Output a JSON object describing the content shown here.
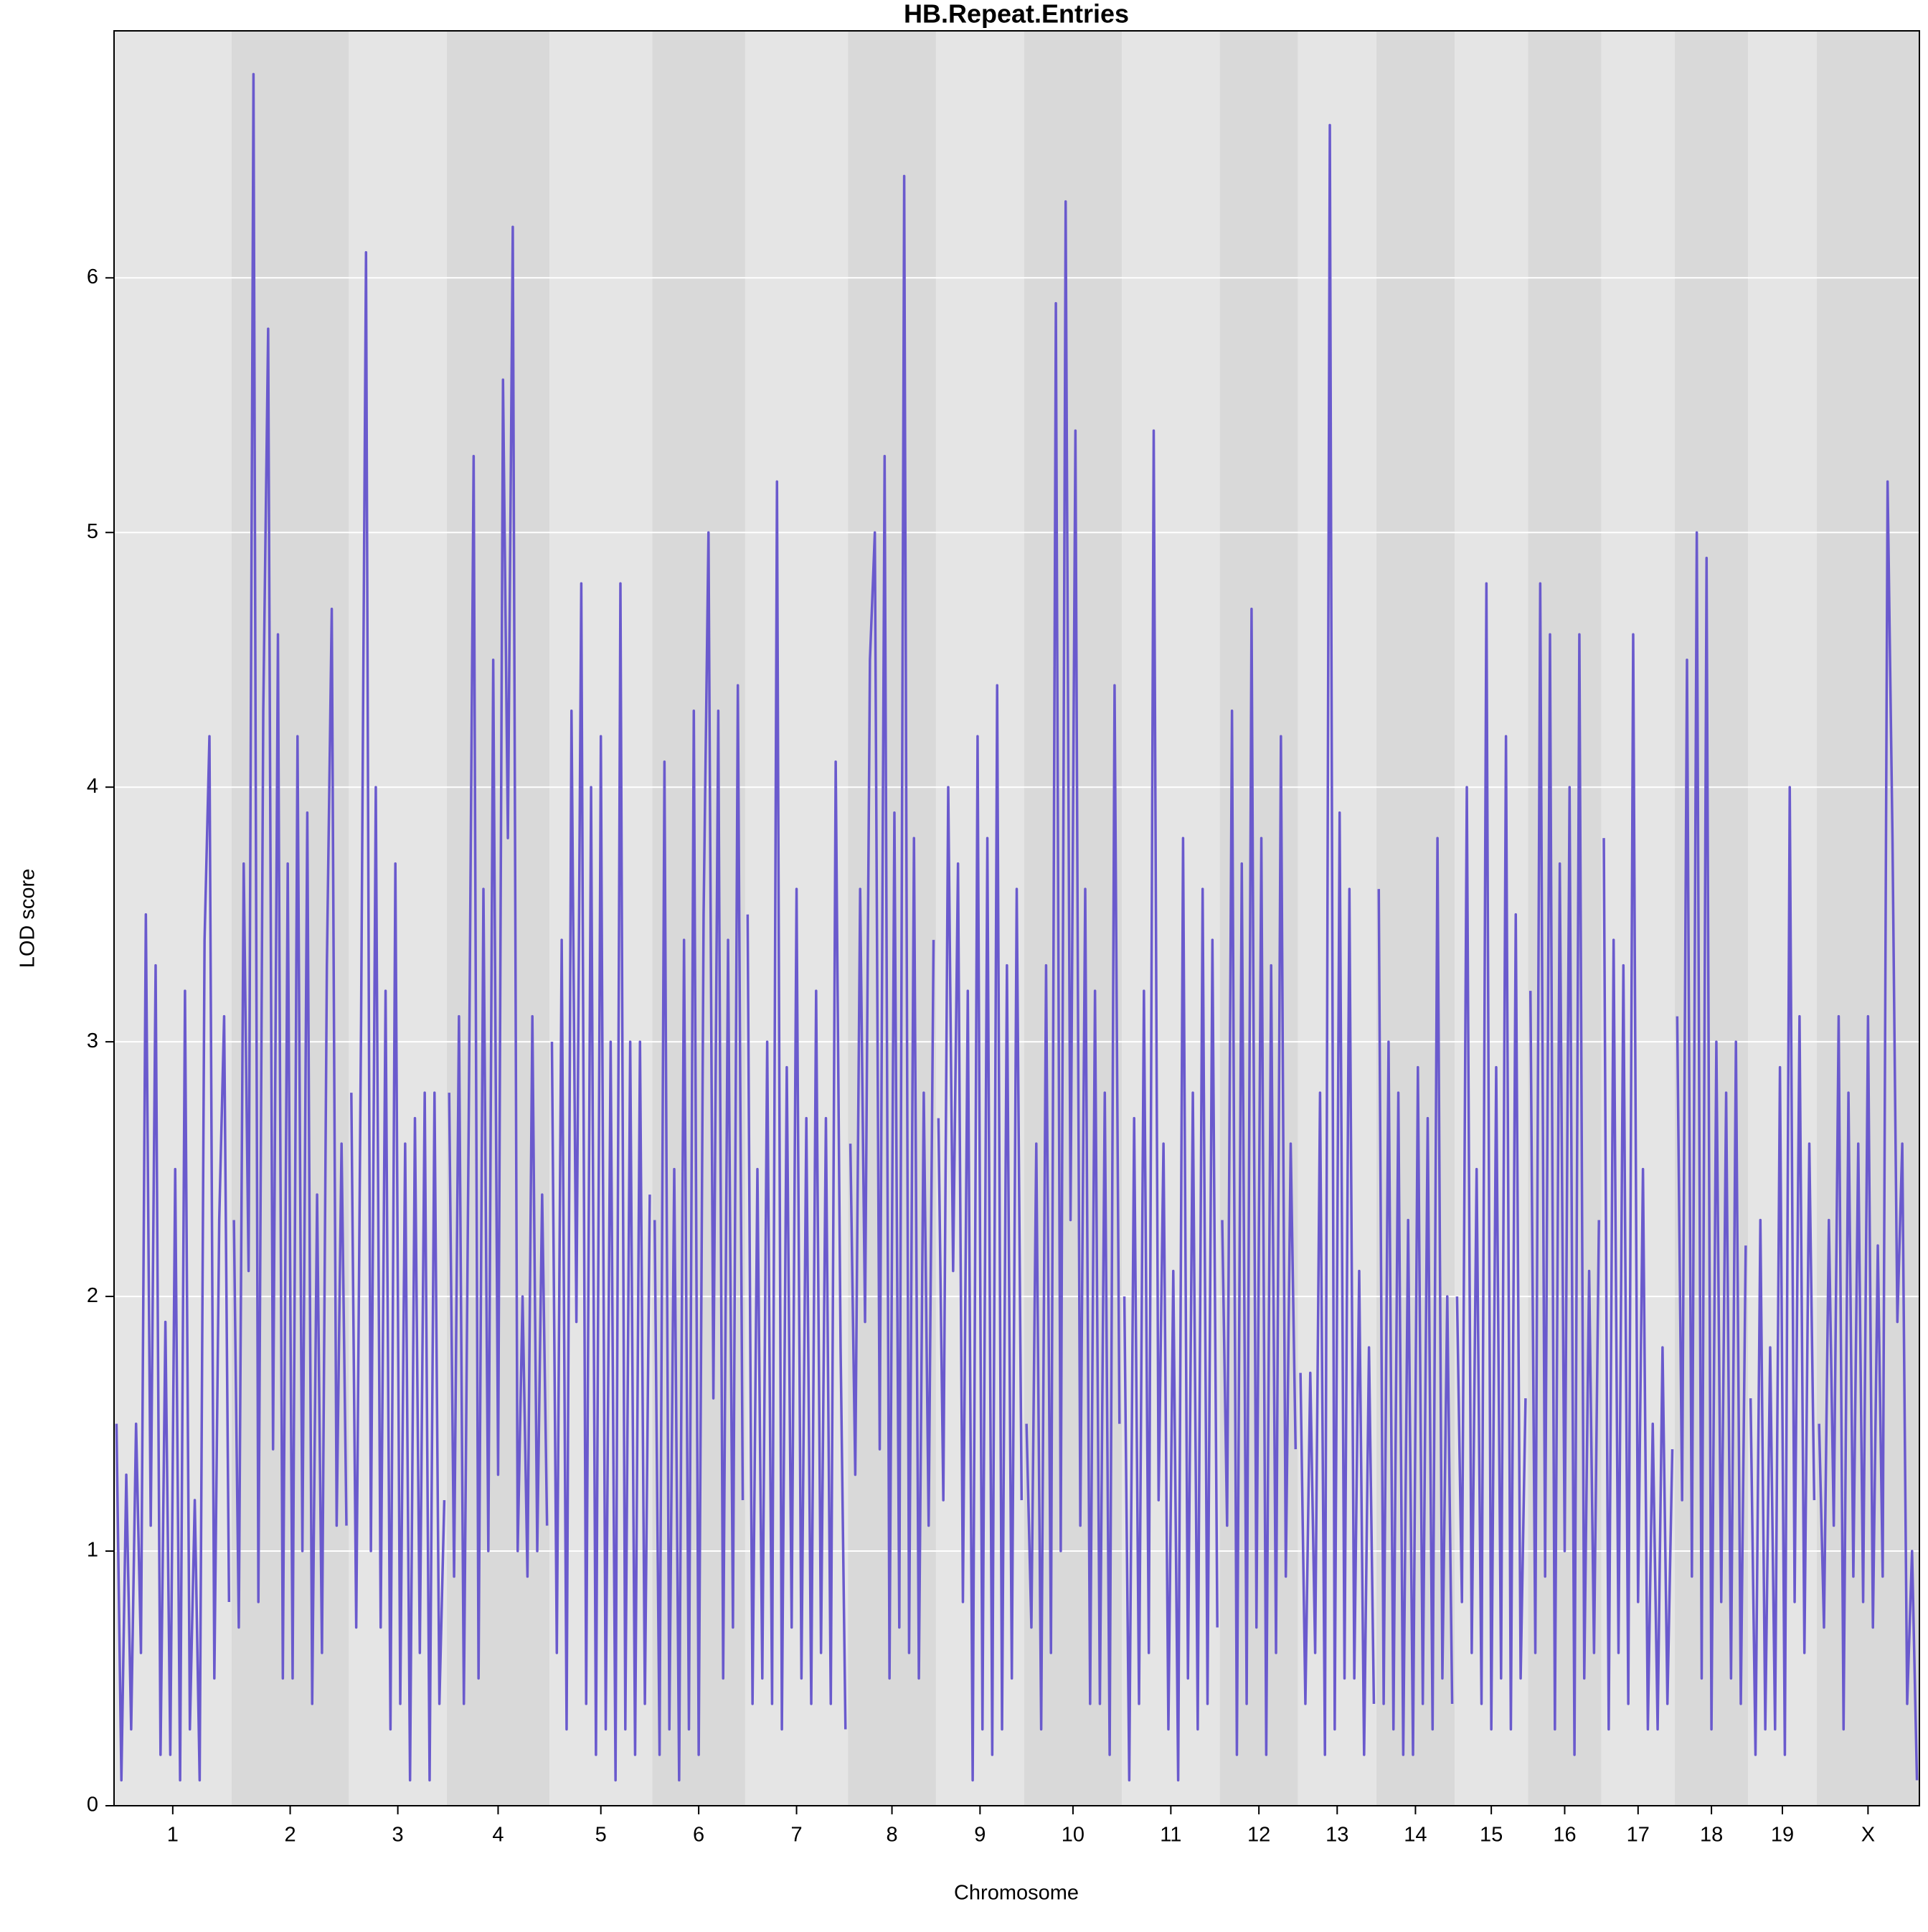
{
  "chart_data": {
    "type": "line",
    "title": "HB.Repeat.Entries",
    "xlabel": "Chromosome",
    "ylabel": "LOD score",
    "color": "#6a5acd",
    "ylim": [
      0,
      6.97
    ],
    "yticks": [
      0,
      1,
      2,
      3,
      4,
      5,
      6
    ],
    "grid": true,
    "series": [
      {
        "name": "1",
        "values": [
          1.5,
          0.1,
          1.3,
          0.3,
          1.5,
          0.6,
          3.5,
          1.1,
          3.3,
          0.2,
          1.9,
          0.2,
          2.5,
          0.1,
          3.2,
          0.3,
          1.2,
          0.1,
          3.4,
          4.2,
          0.5,
          2.3,
          3.1,
          0.8
        ]
      },
      {
        "name": "2",
        "values": [
          2.3,
          0.7,
          3.7,
          2.1,
          6.8,
          0.8,
          4.3,
          5.8,
          1.4,
          4.6,
          0.5,
          3.7,
          0.5,
          4.2,
          1.0,
          3.9,
          0.4,
          2.4,
          0.6,
          3.3,
          4.7,
          1.1,
          2.6,
          1.1
        ]
      },
      {
        "name": "3",
        "values": [
          2.8,
          0.7,
          3.1,
          6.1,
          1.0,
          4.0,
          0.7,
          3.2,
          0.3,
          3.7,
          0.4,
          2.6,
          0.1,
          2.7,
          0.6,
          2.8,
          0.1,
          2.8,
          0.4,
          1.2
        ]
      },
      {
        "name": "4",
        "values": [
          2.8,
          0.9,
          3.1,
          0.4,
          2.7,
          5.3,
          0.5,
          3.6,
          1.0,
          4.5,
          1.3,
          5.6,
          3.8,
          6.2,
          1.0,
          2.0,
          0.9,
          3.1,
          1.0,
          2.4,
          1.1
        ]
      },
      {
        "name": "5",
        "values": [
          3.0,
          0.6,
          3.4,
          0.3,
          4.3,
          1.9,
          4.8,
          0.4,
          4.0,
          0.2,
          4.2,
          0.3,
          3.0,
          0.1,
          4.8,
          0.3,
          3.0,
          0.2,
          3.0,
          0.4,
          2.4
        ]
      },
      {
        "name": "6",
        "values": [
          2.3,
          0.2,
          4.1,
          0.3,
          2.5,
          0.1,
          3.4,
          0.3,
          4.3,
          0.2,
          3.5,
          5.0,
          1.6,
          4.3,
          0.5,
          3.4,
          0.7,
          4.4,
          1.2
        ]
      },
      {
        "name": "7",
        "values": [
          3.5,
          0.4,
          2.5,
          0.5,
          3.0,
          0.4,
          5.2,
          0.3,
          2.9,
          0.7,
          3.6,
          0.5,
          2.7,
          0.4,
          3.2,
          0.6,
          2.7,
          0.4,
          4.1,
          1.8,
          0.3
        ]
      },
      {
        "name": "8",
        "values": [
          2.6,
          1.3,
          3.6,
          1.9,
          4.5,
          5.0,
          1.4,
          5.3,
          0.5,
          3.9,
          0.7,
          6.4,
          0.6,
          3.8,
          0.5,
          2.8,
          1.1,
          3.4
        ]
      },
      {
        "name": "9",
        "values": [
          2.7,
          1.2,
          4.0,
          2.1,
          3.7,
          0.8,
          3.2,
          0.1,
          4.2,
          0.3,
          3.8,
          0.2,
          4.4,
          0.3,
          3.3,
          0.5,
          3.6,
          1.2
        ]
      },
      {
        "name": "10",
        "values": [
          1.5,
          0.7,
          2.6,
          0.3,
          3.3,
          0.6,
          5.9,
          1.0,
          6.3,
          2.3,
          5.4,
          1.1,
          3.6,
          0.4,
          3.2,
          0.4,
          2.8,
          0.2,
          4.4,
          1.5
        ]
      },
      {
        "name": "11",
        "values": [
          2.0,
          0.1,
          2.7,
          0.4,
          3.2,
          0.6,
          5.4,
          1.2,
          2.6,
          0.3,
          2.1,
          0.1,
          3.8,
          0.5,
          2.8,
          0.3,
          3.6,
          0.4,
          3.4,
          0.7
        ]
      },
      {
        "name": "12",
        "values": [
          2.3,
          1.1,
          4.3,
          0.2,
          3.7,
          0.4,
          4.7,
          0.7,
          3.8,
          0.2,
          3.3,
          0.6,
          4.2,
          0.9,
          2.6,
          1.4
        ]
      },
      {
        "name": "13",
        "values": [
          1.7,
          0.4,
          1.7,
          0.6,
          2.8,
          0.2,
          6.6,
          0.3,
          3.9,
          0.5,
          3.6,
          0.5,
          2.1,
          0.2,
          1.8,
          0.4
        ]
      },
      {
        "name": "14",
        "values": [
          3.6,
          0.4,
          3.0,
          0.3,
          2.8,
          0.2,
          2.3,
          0.2,
          2.9,
          0.4,
          2.7,
          0.3,
          3.8,
          0.5,
          2.0,
          0.4
        ]
      },
      {
        "name": "15",
        "values": [
          2.0,
          0.8,
          4.0,
          0.6,
          2.5,
          0.4,
          4.8,
          0.3,
          2.9,
          0.5,
          4.2,
          0.3,
          3.5,
          0.5,
          1.6
        ]
      },
      {
        "name": "16",
        "values": [
          3.2,
          0.6,
          4.8,
          0.9,
          4.6,
          0.3,
          3.7,
          1.0,
          4.0,
          0.2,
          4.6,
          0.5,
          2.1,
          0.6,
          2.3
        ]
      },
      {
        "name": "17",
        "values": [
          3.8,
          0.3,
          3.4,
          0.6,
          3.3,
          0.4,
          4.6,
          0.8,
          2.5,
          0.3,
          1.5,
          0.3,
          1.8,
          0.4,
          1.4
        ]
      },
      {
        "name": "18",
        "values": [
          3.1,
          1.2,
          4.5,
          0.9,
          5.0,
          0.5,
          4.9,
          0.3,
          3.0,
          0.8,
          2.8,
          0.5,
          3.0,
          0.4,
          2.2
        ]
      },
      {
        "name": "19",
        "values": [
          1.6,
          0.2,
          2.3,
          0.3,
          1.8,
          0.3,
          2.9,
          0.2,
          4.0,
          0.8,
          3.1,
          0.6,
          2.6,
          1.2
        ]
      },
      {
        "name": "X",
        "values": [
          1.5,
          0.7,
          2.3,
          1.1,
          3.1,
          0.3,
          2.8,
          0.9,
          2.6,
          0.8,
          3.1,
          0.7,
          2.2,
          0.9,
          5.2,
          3.8,
          1.9,
          2.6,
          0.4,
          1.0,
          0.1
        ]
      }
    ]
  }
}
